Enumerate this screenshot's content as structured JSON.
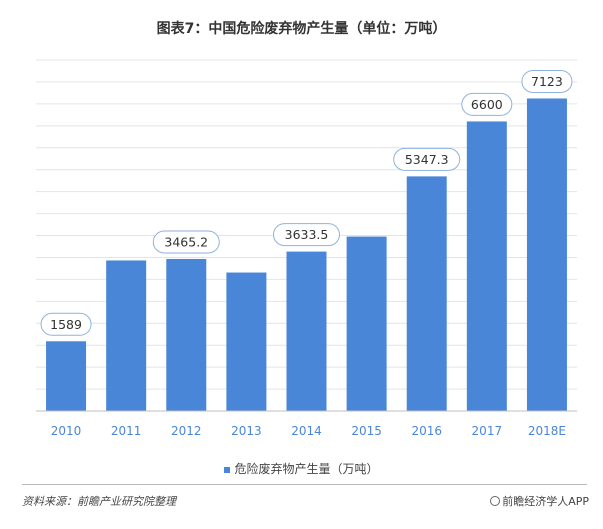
{
  "chart_data": {
    "type": "bar",
    "title": "图表7：中国危险废弃物产生量（单位：万吨）",
    "categories": [
      "2010",
      "2011",
      "2012",
      "2013",
      "2014",
      "2015",
      "2016",
      "2017",
      "2018E"
    ],
    "series": [
      {
        "name": "危险废弃物产生量（万吨）",
        "values": [
          1589,
          3431,
          3465.2,
          3156,
          3633.5,
          3976,
          5347.3,
          6600,
          7123
        ],
        "labeled": [
          true,
          false,
          true,
          false,
          true,
          false,
          true,
          true,
          true
        ],
        "data_labels": [
          "1589",
          "",
          "3465.2",
          "",
          "3633.5",
          "",
          "5347.3",
          "6600",
          "7123"
        ]
      }
    ],
    "ylim": [
      0,
      8000
    ],
    "grid": true,
    "bar_color": "#4a86d8",
    "label_border_color": "#8fb2dc",
    "legend_position": "bottom"
  },
  "footer": {
    "source": "资料来源：前瞻产业研究院整理",
    "brand": "前瞻经济学人APP"
  }
}
